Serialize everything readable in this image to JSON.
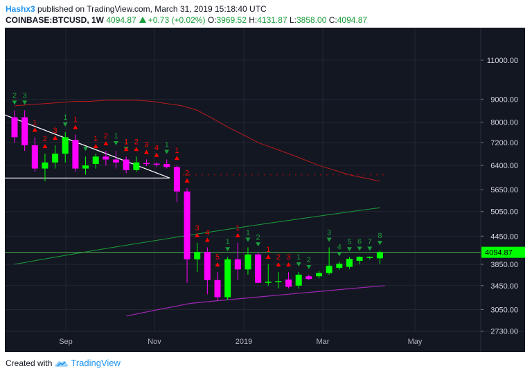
{
  "header": {
    "author": "Hashx3",
    "published": "published on TradingView.com, March 31, 2019 15:18:40 UTC",
    "symbol": "COINBASE:BTCUSD, 1W",
    "last": "4094.87",
    "change": "+0.73 (+0.02%)",
    "o_label": "O:",
    "o_value": "3969.52",
    "h_label": "H:",
    "h_value": "4131.87",
    "l_label": "L:",
    "l_value": "3858.00",
    "c_label": "C:",
    "c_value": "4094.87"
  },
  "footer": {
    "created_with": "Created with",
    "brand": "TradingView"
  },
  "colors": {
    "background": "#131722",
    "up": "#00ff00",
    "down": "#ff00ff",
    "sell_setup": "#ff0000",
    "buy_setup": "#1b9e3a",
    "ma_red": "#b71c1c",
    "ma_green": "#1b9e3a",
    "ma_purple": "#9c27b0",
    "trendline": "#ffffff",
    "price_line": "#4caf50",
    "last_price_bg": "#00ff00"
  },
  "chart_data": {
    "type": "candlestick",
    "scale": "log",
    "ylim": [
      2450,
      13000
    ],
    "y_ticks": [
      "11000.00",
      "9000.00",
      "8000.00",
      "7200.00",
      "6400.00",
      "5650.00",
      "5050.00",
      "4450.00",
      "3850.00",
      "3450.00",
      "3050.00",
      "2730.00"
    ],
    "x_ticks": [
      "Sep",
      "Nov",
      "2019",
      "Mar",
      "May"
    ],
    "last_price_label": "4094.87",
    "last_price": 4094.87,
    "candles": [
      {
        "o": 8200,
        "h": 8500,
        "l": 7200,
        "c": 7400
      },
      {
        "o": 8200,
        "h": 8500,
        "l": 6900,
        "c": 7100
      },
      {
        "o": 7100,
        "h": 7400,
        "l": 6200,
        "c": 6300
      },
      {
        "o": 6300,
        "h": 6800,
        "l": 5900,
        "c": 6500
      },
      {
        "o": 6500,
        "h": 7100,
        "l": 6300,
        "c": 6800
      },
      {
        "o": 6800,
        "h": 7600,
        "l": 6500,
        "c": 7400
      },
      {
        "o": 7300,
        "h": 7500,
        "l": 6200,
        "c": 6300
      },
      {
        "o": 6300,
        "h": 6700,
        "l": 6100,
        "c": 6400
      },
      {
        "o": 6450,
        "h": 6800,
        "l": 6300,
        "c": 6700
      },
      {
        "o": 6700,
        "h": 6900,
        "l": 6400,
        "c": 6600
      },
      {
        "o": 6600,
        "h": 6900,
        "l": 6300,
        "c": 6500
      },
      {
        "o": 6600,
        "h": 6700,
        "l": 6150,
        "c": 6250
      },
      {
        "o": 6250,
        "h": 6700,
        "l": 6200,
        "c": 6500
      },
      {
        "o": 6480,
        "h": 6600,
        "l": 6380,
        "c": 6460
      },
      {
        "o": 6460,
        "h": 6500,
        "l": 6350,
        "c": 6450
      },
      {
        "o": 6450,
        "h": 6600,
        "l": 6300,
        "c": 6350
      },
      {
        "o": 6350,
        "h": 6400,
        "l": 5300,
        "c": 5600
      },
      {
        "o": 5600,
        "h": 5700,
        "l": 3500,
        "c": 3950
      },
      {
        "o": 3950,
        "h": 4300,
        "l": 3700,
        "c": 4100
      },
      {
        "o": 4100,
        "h": 4200,
        "l": 3300,
        "c": 3550
      },
      {
        "o": 3550,
        "h": 3700,
        "l": 3200,
        "c": 3250
      },
      {
        "o": 3250,
        "h": 4000,
        "l": 3200,
        "c": 3950
      },
      {
        "o": 3950,
        "h": 4300,
        "l": 3550,
        "c": 3750
      },
      {
        "o": 3750,
        "h": 4200,
        "l": 3650,
        "c": 4050
      },
      {
        "o": 4050,
        "h": 4100,
        "l": 3500,
        "c": 3500
      },
      {
        "o": 3500,
        "h": 3850,
        "l": 3450,
        "c": 3520
      },
      {
        "o": 3520,
        "h": 3700,
        "l": 3400,
        "c": 3530
      },
      {
        "o": 3560,
        "h": 3700,
        "l": 3400,
        "c": 3430
      },
      {
        "o": 3450,
        "h": 3700,
        "l": 3400,
        "c": 3650
      },
      {
        "o": 3620,
        "h": 3650,
        "l": 3550,
        "c": 3570
      },
      {
        "o": 3620,
        "h": 3720,
        "l": 3580,
        "c": 3680
      },
      {
        "o": 3680,
        "h": 4200,
        "l": 3650,
        "c": 3820
      },
      {
        "o": 3780,
        "h": 3900,
        "l": 3740,
        "c": 3860
      },
      {
        "o": 3800,
        "h": 4000,
        "l": 3760,
        "c": 3960
      },
      {
        "o": 3920,
        "h": 4010,
        "l": 3850,
        "c": 4000
      },
      {
        "o": 3990,
        "h": 4010,
        "l": 3950,
        "c": 4000
      },
      {
        "o": 3969.52,
        "h": 4131.87,
        "l": 3858,
        "c": 4094.87
      }
    ],
    "setup_labels": [
      {
        "i": 0,
        "t": "2",
        "side": "buy"
      },
      {
        "i": 1,
        "t": "3",
        "side": "buy"
      },
      {
        "i": 2,
        "t": "1",
        "side": "sell"
      },
      {
        "i": 3,
        "t": "2",
        "side": "sell"
      },
      {
        "i": 4,
        "t": "3",
        "side": "sell"
      },
      {
        "i": 5,
        "t": "1",
        "side": "buy"
      },
      {
        "i": 6,
        "t": "1",
        "side": "sell"
      },
      {
        "i": 7,
        "t": "",
        "side": "buy"
      },
      {
        "i": 8,
        "t": "1",
        "side": "sell"
      },
      {
        "i": 9,
        "t": "2",
        "side": "sell"
      },
      {
        "i": 10,
        "t": "1",
        "side": "buy"
      },
      {
        "i": 11,
        "t": "1",
        "side": "buy"
      },
      {
        "i": 11,
        "t": "1",
        "side": "sell"
      },
      {
        "i": 12,
        "t": "2",
        "side": "sell"
      },
      {
        "i": 13,
        "t": "3",
        "side": "sell"
      },
      {
        "i": 14,
        "t": "4",
        "side": "sell"
      },
      {
        "i": 15,
        "t": "1",
        "side": "buy"
      },
      {
        "i": 16,
        "t": "1",
        "side": "sell"
      },
      {
        "i": 17,
        "t": "2",
        "side": "sell"
      },
      {
        "i": 18,
        "t": "3",
        "side": "sell"
      },
      {
        "i": 19,
        "t": "4",
        "side": "sell"
      },
      {
        "i": 20,
        "t": "5",
        "side": "sell"
      },
      {
        "i": 21,
        "t": "1",
        "side": "buy"
      },
      {
        "i": 22,
        "t": "1",
        "side": "sell"
      },
      {
        "i": 23,
        "t": "1",
        "side": "buy"
      },
      {
        "i": 24,
        "t": "2",
        "side": "buy"
      },
      {
        "i": 25,
        "t": "1",
        "side": "sell"
      },
      {
        "i": 26,
        "t": "2",
        "side": "sell"
      },
      {
        "i": 27,
        "t": "3",
        "side": "sell"
      },
      {
        "i": 28,
        "t": "1",
        "side": "buy"
      },
      {
        "i": 29,
        "t": "2",
        "side": "buy"
      },
      {
        "i": 31,
        "t": "3",
        "side": "buy"
      },
      {
        "i": 32,
        "t": "4",
        "side": "buy"
      },
      {
        "i": 33,
        "t": "5",
        "side": "buy"
      },
      {
        "i": 34,
        "t": "6",
        "side": "buy"
      },
      {
        "i": 35,
        "t": "7",
        "side": "buy"
      },
      {
        "i": 36,
        "t": "8",
        "side": "buy"
      }
    ],
    "ma_red": [
      8700,
      8750,
      8800,
      8850,
      8900,
      8900,
      8950,
      8950,
      8950,
      8900,
      8800,
      8700,
      8500,
      8150,
      7800,
      7500,
      7200,
      7000,
      6800,
      6600,
      6400,
      6250,
      6100,
      6000,
      5900
    ],
    "ma_green": [
      3850,
      3950,
      4050,
      4150,
      4250,
      4350,
      4450,
      4550,
      4650,
      4750,
      4850,
      4950,
      5050,
      5150
    ],
    "ma_purple": [
      2950,
      3050,
      3150,
      3200,
      3250,
      3300,
      3350,
      3400,
      3450
    ],
    "dotted_level": 6100,
    "triangle": {
      "start": 8300,
      "end": 6000,
      "base": 6000
    }
  }
}
